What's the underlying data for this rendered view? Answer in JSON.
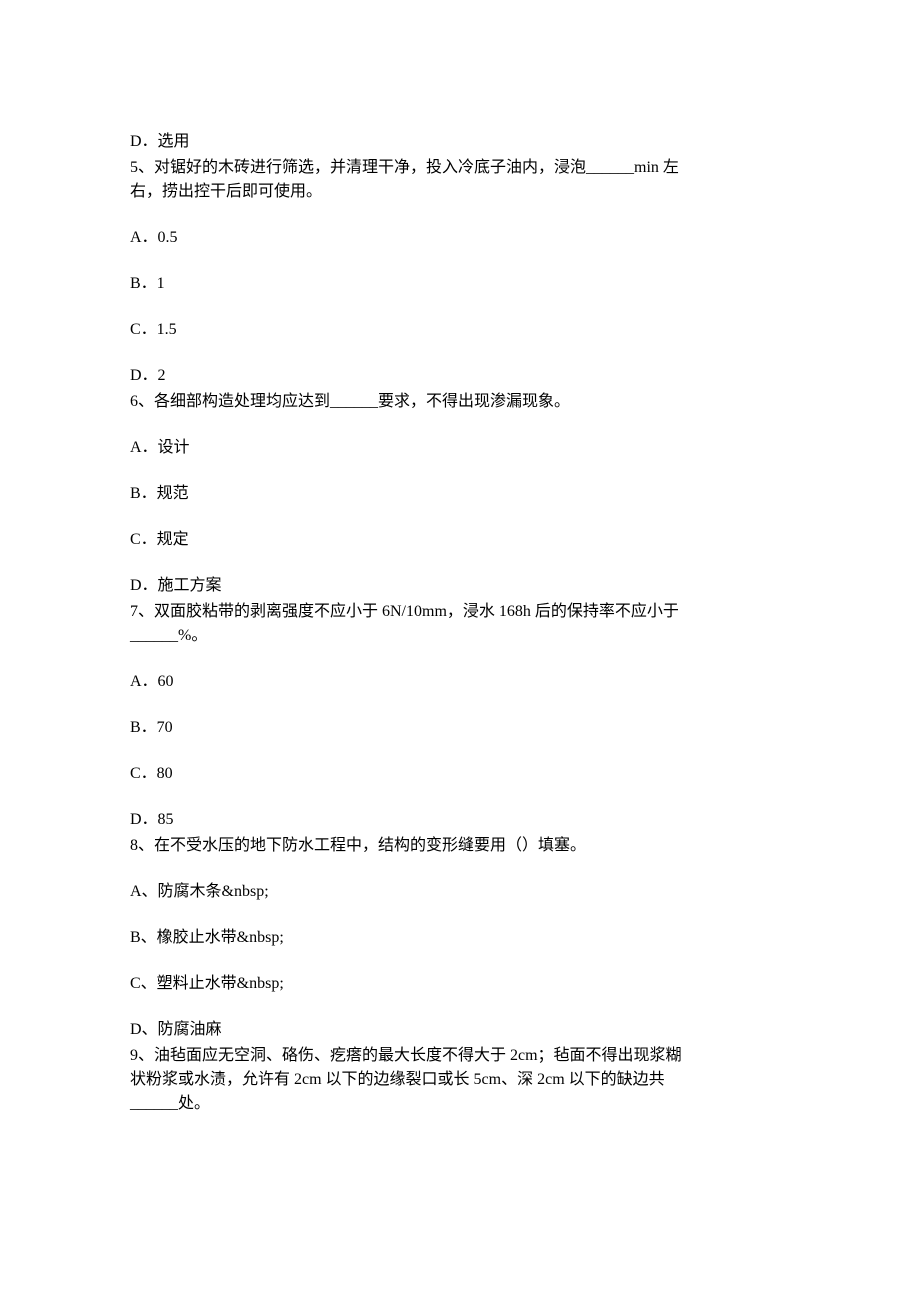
{
  "fragment": {
    "optD": "D．选用"
  },
  "q5": {
    "stem1": "5、对锯好的木砖进行筛选，并清理干净，投入冷底子油内，浸泡______min 左",
    "stem2": "右，捞出控干后即可使用。",
    "a": "A．0.5",
    "b": "B．1",
    "c": "C．1.5",
    "d": "D．2"
  },
  "q6": {
    "stem": "6、各细部构造处理均应达到______要求，不得出现渗漏现象。",
    "a": "A．设计",
    "b": "B．规范",
    "c": "C．规定",
    "d": "D．施工方案"
  },
  "q7": {
    "stem1": "7、双面胶粘带的剥离强度不应小于 6N/10mm，浸水 168h 后的保持率不应小于",
    "stem2": "______%。",
    "a": "A．60",
    "b": "B．70",
    "c": "C．80",
    "d": "D．85"
  },
  "q8": {
    "stem": "8、在不受水压的地下防水工程中，结构的变形缝要用（）填塞。",
    "a": "A、防腐木条&nbsp;",
    "b": "B、橡胶止水带&nbsp;",
    "c": "C、塑料止水带&nbsp;",
    "d": "D、防腐油麻"
  },
  "q9": {
    "stem1": "9、油毡面应无空洞、硌伤、疙瘩的最大长度不得大于 2cm；毡面不得出现浆糊",
    "stem2": "状粉浆或水渍，允许有 2cm 以下的边缘裂口或长 5cm、深 2cm 以下的缺边共",
    "stem3": "______处。"
  }
}
